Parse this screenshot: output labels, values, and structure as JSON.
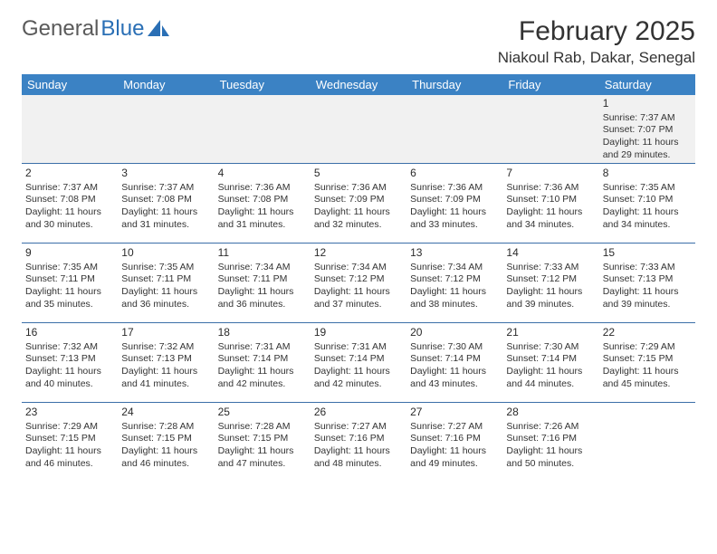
{
  "logo": {
    "text1": "General",
    "text2": "Blue"
  },
  "title": "February 2025",
  "location": "Niakoul Rab, Dakar, Senegal",
  "colors": {
    "header_bg": "#3b82c4",
    "header_text": "#ffffff",
    "row_border": "#3b6fa8",
    "empty_bg": "#f1f1f1",
    "text": "#333333",
    "logo_gray": "#5a5a5a",
    "logo_blue": "#2a6fb5"
  },
  "day_headers": [
    "Sunday",
    "Monday",
    "Tuesday",
    "Wednesday",
    "Thursday",
    "Friday",
    "Saturday"
  ],
  "weeks": [
    [
      null,
      null,
      null,
      null,
      null,
      null,
      {
        "n": "1",
        "sr": "7:37 AM",
        "ss": "7:07 PM",
        "dl": "11 hours and 29 minutes."
      }
    ],
    [
      {
        "n": "2",
        "sr": "7:37 AM",
        "ss": "7:08 PM",
        "dl": "11 hours and 30 minutes."
      },
      {
        "n": "3",
        "sr": "7:37 AM",
        "ss": "7:08 PM",
        "dl": "11 hours and 31 minutes."
      },
      {
        "n": "4",
        "sr": "7:36 AM",
        "ss": "7:08 PM",
        "dl": "11 hours and 31 minutes."
      },
      {
        "n": "5",
        "sr": "7:36 AM",
        "ss": "7:09 PM",
        "dl": "11 hours and 32 minutes."
      },
      {
        "n": "6",
        "sr": "7:36 AM",
        "ss": "7:09 PM",
        "dl": "11 hours and 33 minutes."
      },
      {
        "n": "7",
        "sr": "7:36 AM",
        "ss": "7:10 PM",
        "dl": "11 hours and 34 minutes."
      },
      {
        "n": "8",
        "sr": "7:35 AM",
        "ss": "7:10 PM",
        "dl": "11 hours and 34 minutes."
      }
    ],
    [
      {
        "n": "9",
        "sr": "7:35 AM",
        "ss": "7:11 PM",
        "dl": "11 hours and 35 minutes."
      },
      {
        "n": "10",
        "sr": "7:35 AM",
        "ss": "7:11 PM",
        "dl": "11 hours and 36 minutes."
      },
      {
        "n": "11",
        "sr": "7:34 AM",
        "ss": "7:11 PM",
        "dl": "11 hours and 36 minutes."
      },
      {
        "n": "12",
        "sr": "7:34 AM",
        "ss": "7:12 PM",
        "dl": "11 hours and 37 minutes."
      },
      {
        "n": "13",
        "sr": "7:34 AM",
        "ss": "7:12 PM",
        "dl": "11 hours and 38 minutes."
      },
      {
        "n": "14",
        "sr": "7:33 AM",
        "ss": "7:12 PM",
        "dl": "11 hours and 39 minutes."
      },
      {
        "n": "15",
        "sr": "7:33 AM",
        "ss": "7:13 PM",
        "dl": "11 hours and 39 minutes."
      }
    ],
    [
      {
        "n": "16",
        "sr": "7:32 AM",
        "ss": "7:13 PM",
        "dl": "11 hours and 40 minutes."
      },
      {
        "n": "17",
        "sr": "7:32 AM",
        "ss": "7:13 PM",
        "dl": "11 hours and 41 minutes."
      },
      {
        "n": "18",
        "sr": "7:31 AM",
        "ss": "7:14 PM",
        "dl": "11 hours and 42 minutes."
      },
      {
        "n": "19",
        "sr": "7:31 AM",
        "ss": "7:14 PM",
        "dl": "11 hours and 42 minutes."
      },
      {
        "n": "20",
        "sr": "7:30 AM",
        "ss": "7:14 PM",
        "dl": "11 hours and 43 minutes."
      },
      {
        "n": "21",
        "sr": "7:30 AM",
        "ss": "7:14 PM",
        "dl": "11 hours and 44 minutes."
      },
      {
        "n": "22",
        "sr": "7:29 AM",
        "ss": "7:15 PM",
        "dl": "11 hours and 45 minutes."
      }
    ],
    [
      {
        "n": "23",
        "sr": "7:29 AM",
        "ss": "7:15 PM",
        "dl": "11 hours and 46 minutes."
      },
      {
        "n": "24",
        "sr": "7:28 AM",
        "ss": "7:15 PM",
        "dl": "11 hours and 46 minutes."
      },
      {
        "n": "25",
        "sr": "7:28 AM",
        "ss": "7:15 PM",
        "dl": "11 hours and 47 minutes."
      },
      {
        "n": "26",
        "sr": "7:27 AM",
        "ss": "7:16 PM",
        "dl": "11 hours and 48 minutes."
      },
      {
        "n": "27",
        "sr": "7:27 AM",
        "ss": "7:16 PM",
        "dl": "11 hours and 49 minutes."
      },
      {
        "n": "28",
        "sr": "7:26 AM",
        "ss": "7:16 PM",
        "dl": "11 hours and 50 minutes."
      },
      null
    ]
  ],
  "labels": {
    "sunrise": "Sunrise:",
    "sunset": "Sunset:",
    "daylight": "Daylight:"
  }
}
